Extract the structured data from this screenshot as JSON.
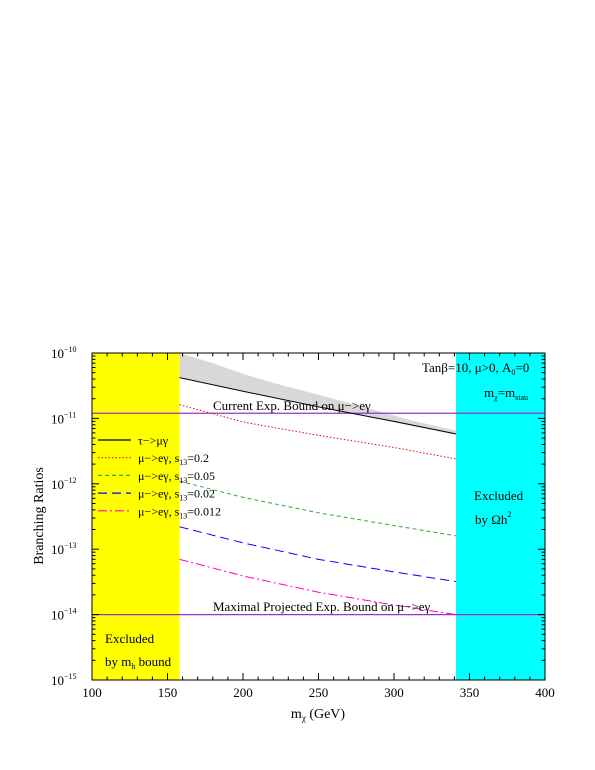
{
  "chart_data": {
    "type": "line",
    "xlabel": "m",
    "xlabel_sub": "χ",
    "xlabel_unit": " (GeV)",
    "ylabel": "Branching Ratios",
    "xlim": [
      100,
      400
    ],
    "ylim_log10": [
      -15,
      -10
    ],
    "x_ticks": [
      "100",
      "150",
      "200",
      "250",
      "300",
      "350",
      "400"
    ],
    "y_ticks": [
      {
        "base": "10",
        "exp": "−15",
        "v": -15
      },
      {
        "base": "10",
        "exp": "−14",
        "v": -14
      },
      {
        "base": "10",
        "exp": "−13",
        "v": -13
      },
      {
        "base": "10",
        "exp": "−12",
        "v": -12
      },
      {
        "base": "10",
        "exp": "−11",
        "v": -11
      },
      {
        "base": "10",
        "exp": "−10",
        "v": -10
      }
    ],
    "annotations": {
      "params": "Tanβ=10, μ>0, A",
      "params_sub": "0",
      "params_end": "=0",
      "mass_main": "m",
      "mass_sub1": "χ",
      "mass_eq": "=m",
      "mass_sub2": "stau",
      "current_bound": "Current Exp. Bound on μ−>eγ",
      "projected_bound": "Maximal Projected Exp. Bound on μ−>eγ",
      "excluded_left_1": "Excluded",
      "excluded_left_2": "by m",
      "excluded_left_sub": "h",
      "excluded_left_3": " bound",
      "excluded_right_1": "Excluded",
      "excluded_right_2": "by Ωh",
      "excluded_right_sup": "2"
    },
    "regions": [
      {
        "name": "excluded-mh",
        "x": [
          100,
          158
        ],
        "color": "#ffff00"
      },
      {
        "name": "excluded-omega",
        "x": [
          341,
          400
        ],
        "color": "#00ffff"
      }
    ],
    "bounds": [
      {
        "name": "current",
        "y": 1.2e-11,
        "color": "#9933cc"
      },
      {
        "name": "projected",
        "y": 1e-14,
        "color": "#9933cc"
      }
    ],
    "band": {
      "color": "#d8d8d8",
      "x": [
        158,
        180,
        200,
        220,
        250,
        280,
        310,
        341
      ],
      "upper": [
        1e-10,
        7e-11,
        4.8e-11,
        3.5e-11,
        2.3e-11,
        1.5e-11,
        9.5e-12,
        6.5e-12
      ],
      "lower": [
        4.2e-11,
        3.3e-11,
        2.6e-11,
        2.1e-11,
        1.5e-11,
        1.08e-11,
        7.8e-12,
        5.6e-12
      ]
    },
    "series": [
      {
        "name": "τ−>μγ",
        "color": "#000000",
        "dash": "",
        "x": [
          158,
          200,
          250,
          300,
          341
        ],
        "y": [
          4.2e-11,
          2.6e-11,
          1.5e-11,
          9e-12,
          5.8e-12
        ]
      },
      {
        "name": "μ−>eγ, s",
        "sub": "13",
        "value": "=0.2",
        "color": "#ff0000",
        "dash": "1.5,2",
        "x": [
          158,
          200,
          250,
          300,
          341
        ],
        "y": [
          1.62e-11,
          8.8e-12,
          5.5e-12,
          3.6e-12,
          2.4e-12
        ]
      },
      {
        "name": "μ−>eγ, s",
        "sub": "13",
        "value": "=0.05",
        "color": "#33aa33",
        "dash": "4,3",
        "x": [
          158,
          200,
          250,
          300,
          341
        ],
        "y": [
          1.1e-12,
          6.2e-13,
          3.6e-13,
          2.3e-13,
          1.6e-13
        ]
      },
      {
        "name": "μ−>eγ, s",
        "sub": "13",
        "value": "=0.02",
        "color": "#0000ff",
        "dash": "9,5",
        "x": [
          158,
          200,
          250,
          300,
          341
        ],
        "y": [
          2.2e-13,
          1.25e-13,
          7e-14,
          4.5e-14,
          3.2e-14
        ]
      },
      {
        "name": "μ−>eγ, s",
        "sub": "13",
        "value": "=0.012",
        "color": "#ff00cc",
        "dash": "9,3,2,3",
        "x": [
          158,
          200,
          250,
          300,
          341
        ],
        "y": [
          7e-14,
          3.9e-14,
          2.2e-14,
          1.4e-14,
          1e-14
        ]
      }
    ]
  }
}
